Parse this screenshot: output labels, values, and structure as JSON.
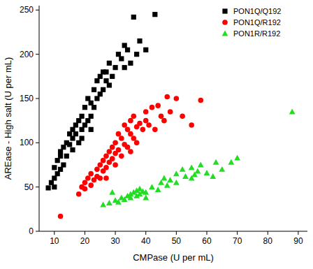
{
  "chart_data": {
    "type": "scatter",
    "x_label": "CMPase (U per mL)",
    "y_label": "AREase - High salt (U per mL)",
    "xlim": [
      5,
      93
    ],
    "xticks": [
      10,
      20,
      30,
      40,
      50,
      60,
      70,
      80,
      90
    ],
    "ylim": [
      0,
      255
    ],
    "yticks": [
      0,
      50,
      100,
      150,
      200,
      250
    ],
    "grid": false,
    "legend": "top-right",
    "series": [
      {
        "name": "PON1Q/Q192",
        "color": "#000000",
        "marker": "square",
        "x": [
          8,
          9,
          10,
          10,
          10,
          11,
          11,
          12,
          12,
          12,
          13,
          13,
          14,
          14,
          15,
          15,
          16,
          16,
          16,
          17,
          17,
          18,
          18,
          19,
          19,
          20,
          20,
          21,
          21,
          22,
          22,
          23,
          23,
          24,
          24,
          25,
          25,
          26,
          27,
          27,
          28,
          28,
          29,
          30,
          31,
          32,
          33,
          33,
          34,
          35,
          36,
          38,
          40,
          43,
          37,
          22,
          19,
          26
        ],
        "values": [
          49,
          55,
          50,
          60,
          72,
          65,
          80,
          70,
          85,
          90,
          75,
          95,
          85,
          100,
          98,
          110,
          92,
          105,
          115,
          110,
          120,
          100,
          125,
          115,
          130,
          120,
          140,
          125,
          150,
          130,
          145,
          140,
          160,
          150,
          170,
          155,
          175,
          160,
          170,
          180,
          165,
          190,
          175,
          185,
          200,
          195,
          210,
          185,
          205,
          190,
          242,
          215,
          205,
          245,
          200,
          115,
          105,
          180
        ]
      },
      {
        "name": "PON1Q/R192",
        "color": "#ff0000",
        "marker": "circle",
        "x": [
          12,
          18,
          19,
          20,
          20,
          21,
          22,
          22,
          23,
          24,
          24,
          25,
          25,
          26,
          26,
          27,
          27,
          28,
          28,
          29,
          29,
          30,
          30,
          31,
          31,
          32,
          32,
          33,
          33,
          34,
          34,
          35,
          35,
          36,
          36,
          37,
          37,
          38,
          39,
          40,
          40,
          41,
          42,
          43,
          44,
          45,
          46,
          47,
          48,
          50,
          52,
          55,
          58,
          30,
          27,
          35
        ],
        "values": [
          17,
          42,
          50,
          48,
          55,
          60,
          52,
          65,
          58,
          62,
          70,
          75,
          60,
          68,
          80,
          85,
          72,
          90,
          78,
          95,
          82,
          88,
          100,
          92,
          110,
          85,
          105,
          98,
          120,
          95,
          115,
          110,
          125,
          105,
          130,
          100,
          118,
          122,
          115,
          135,
          125,
          120,
          140,
          115,
          142,
          130,
          125,
          152,
          135,
          150,
          130,
          120,
          148,
          75,
          60,
          90
        ]
      },
      {
        "name": "PON1R/R192",
        "color": "#22dd22",
        "marker": "triangle",
        "x": [
          26,
          28,
          30,
          31,
          32,
          33,
          34,
          35,
          35,
          36,
          37,
          37,
          38,
          38,
          39,
          40,
          40,
          42,
          44,
          45,
          46,
          47,
          48,
          50,
          50,
          52,
          53,
          55,
          55,
          57,
          58,
          60,
          62,
          63,
          65,
          68,
          70,
          88,
          56,
          29
        ],
        "values": [
          30,
          32,
          35,
          33,
          38,
          36,
          40,
          38,
          42,
          44,
          40,
          46,
          42,
          48,
          45,
          44,
          38,
          50,
          47,
          55,
          60,
          52,
          58,
          65,
          55,
          70,
          62,
          72,
          60,
          68,
          75,
          66,
          62,
          78,
          70,
          78,
          83,
          135,
          64,
          44
        ]
      }
    ]
  }
}
